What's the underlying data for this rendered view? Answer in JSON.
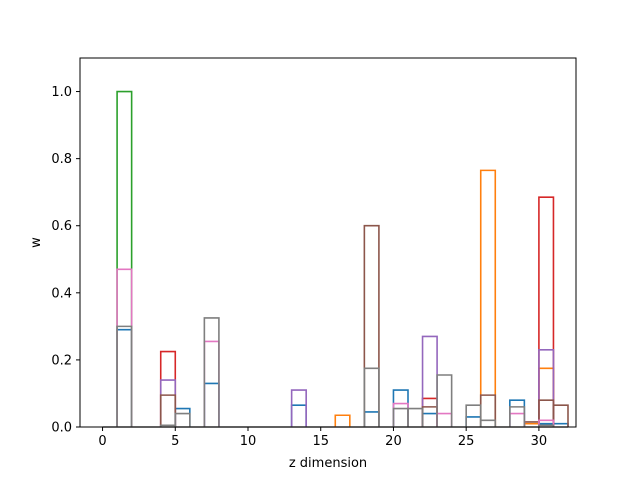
{
  "chart_data": {
    "type": "bar",
    "histtype": "step",
    "title": "",
    "xlabel": "z dimension",
    "ylabel": "w",
    "xlim": [
      -1.55,
      32.55
    ],
    "ylim": [
      0,
      1.1
    ],
    "xticks": [
      0,
      5,
      10,
      15,
      20,
      25,
      30
    ],
    "xtick_labels": [
      "0",
      "5",
      "10",
      "15",
      "20",
      "25",
      "30"
    ],
    "yticks": [
      0,
      0.2,
      0.4,
      0.6,
      0.8,
      1.0
    ],
    "ytick_labels": [
      "0.0",
      "0.2",
      "0.4",
      "0.6",
      "0.8",
      "1.0"
    ],
    "grid": false,
    "legend": false,
    "bin_width": 1,
    "series": [
      {
        "color": "#1f77b4",
        "values": [
          [
            1,
            0.29
          ],
          [
            5,
            0.055
          ],
          [
            7,
            0.13
          ],
          [
            13,
            0.065
          ],
          [
            18,
            0.045
          ],
          [
            20,
            0.11
          ],
          [
            22,
            0.04
          ],
          [
            25,
            0.03
          ],
          [
            28,
            0.08
          ],
          [
            30,
            0.01
          ],
          [
            31,
            0.01
          ]
        ]
      },
      {
        "color": "#ff7f0e",
        "values": [
          [
            16,
            0.035
          ],
          [
            26,
            0.765
          ],
          [
            30,
            0.175
          ],
          [
            29,
            0.01
          ]
        ]
      },
      {
        "color": "#2ca02c",
        "values": [
          [
            1,
            1.0
          ]
        ]
      },
      {
        "color": "#d62728",
        "values": [
          [
            4,
            0.225
          ],
          [
            22,
            0.085
          ],
          [
            30,
            0.685
          ]
        ]
      },
      {
        "color": "#9467bd",
        "values": [
          [
            4,
            0.14
          ],
          [
            13,
            0.11
          ],
          [
            22,
            0.27
          ],
          [
            30,
            0.23
          ]
        ]
      },
      {
        "color": "#8c564b",
        "values": [
          [
            4,
            0.095
          ],
          [
            18,
            0.6
          ],
          [
            22,
            0.06
          ],
          [
            26,
            0.095
          ],
          [
            30,
            0.08
          ],
          [
            31,
            0.065
          ],
          [
            29,
            0.015
          ]
        ]
      },
      {
        "color": "#e377c2",
        "values": [
          [
            1,
            0.47
          ],
          [
            7,
            0.255
          ],
          [
            20,
            0.07
          ],
          [
            23,
            0.04
          ],
          [
            28,
            0.04
          ],
          [
            30,
            0.02
          ]
        ]
      },
      {
        "color": "#7f7f7f",
        "values": [
          [
            1,
            0.3
          ],
          [
            4,
            0.005
          ],
          [
            5,
            0.04
          ],
          [
            7,
            0.325
          ],
          [
            18,
            0.175
          ],
          [
            20,
            0.055
          ],
          [
            21,
            0.055
          ],
          [
            23,
            0.155
          ],
          [
            25,
            0.065
          ],
          [
            26,
            0.02
          ],
          [
            28,
            0.06
          ],
          [
            30,
            0.005
          ]
        ]
      }
    ]
  }
}
